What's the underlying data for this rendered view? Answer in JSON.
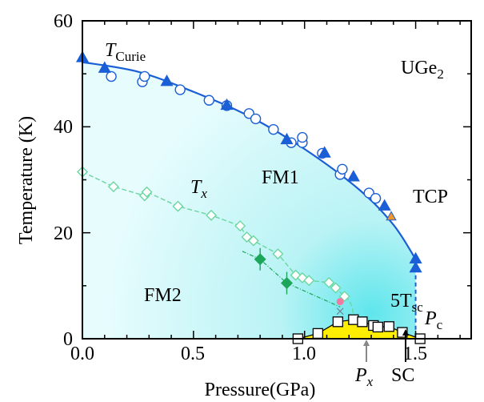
{
  "chart_data": {
    "type": "scatter",
    "title": "",
    "xlabel": "Pressure(GPa)",
    "ylabel": "Temperature (K)",
    "xlim": [
      0,
      1.75
    ],
    "ylim": [
      0,
      60
    ],
    "x_ticks": [
      "0.0",
      "0.5",
      "1.0",
      "1.5"
    ],
    "y_ticks": [
      "0",
      "20",
      "40",
      "60"
    ],
    "grid": false,
    "annotations": {
      "material": "UGe",
      "material_sub": "2",
      "curie": "T",
      "curie_sub": "Curie",
      "fm1": "FM1",
      "fm2": "FM2",
      "tx": "T",
      "tx_sub": "x",
      "tcp": "TCP",
      "sc_scale": "5T",
      "sc_scale_sub": "sc",
      "pc": "P",
      "pc_sub": "c",
      "px": "P",
      "px_sub": "x",
      "sc": "SC"
    },
    "colors": {
      "curie": "#1a5fd6",
      "tx": "#6bd6a0",
      "tx_filled": "#1ca65a",
      "tcp": "#f0962a",
      "pink": "#f07aa0",
      "sc_fill": "#ffee00",
      "region_fill": "#b9f3f5"
    },
    "series": [
      {
        "name": "T_Curie (filled triangles)",
        "marker": "triangle",
        "x": [
          0.0,
          0.1,
          0.38,
          0.65,
          0.92,
          1.09,
          1.22,
          1.36,
          1.5,
          1.5
        ],
        "y": [
          53,
          51,
          48.5,
          44,
          37.5,
          35,
          30.5,
          25,
          15,
          13.3
        ]
      },
      {
        "name": "T_Curie (open circles)",
        "marker": "circle-open",
        "x": [
          0.13,
          0.27,
          0.28,
          0.44,
          0.57,
          0.65,
          0.75,
          0.78,
          0.86,
          0.94,
          0.99,
          0.99,
          1.08,
          1.16,
          1.17,
          1.29,
          1.32
        ],
        "y": [
          49.5,
          48.5,
          49.5,
          47,
          45,
          44,
          42.5,
          41.5,
          39.5,
          37,
          37,
          38,
          35,
          31,
          32,
          27.5,
          26.5
        ]
      },
      {
        "name": "T_Curie fit",
        "marker": "line",
        "x": [
          0.0,
          0.25,
          0.5,
          0.75,
          1.0,
          1.25,
          1.4,
          1.5
        ],
        "y": [
          52.2,
          50.4,
          46.6,
          42,
          35.8,
          28,
          21.5,
          15
        ]
      },
      {
        "name": "T_x (open diamonds)",
        "marker": "diamond-open",
        "x": [
          0.0,
          0.14,
          0.28,
          0.29,
          0.43,
          0.58,
          0.71,
          0.74,
          0.77,
          0.88,
          0.96,
          0.99,
          1.02,
          1.11,
          1.14,
          1.18
        ],
        "y": [
          31.5,
          28.7,
          27,
          27.7,
          25,
          23.3,
          21.3,
          19.2,
          18.5,
          16,
          12,
          11.5,
          11,
          10.6,
          9.6,
          8
        ]
      },
      {
        "name": "T_x (filled diamonds)",
        "marker": "diamond",
        "x": [
          0.8,
          0.92
        ],
        "y": [
          15,
          10.5
        ]
      },
      {
        "name": "TCP",
        "marker": "triangle",
        "x": [
          1.39
        ],
        "y": [
          23
        ]
      },
      {
        "name": "pink point",
        "marker": "circle",
        "x": [
          1.16
        ],
        "y": [
          7
        ]
      },
      {
        "name": "5T_sc (open squares)",
        "marker": "square-open",
        "x": [
          0.97,
          1.06,
          1.15,
          1.22,
          1.26,
          1.31,
          1.33,
          1.38,
          1.44,
          1.52
        ],
        "y": [
          0,
          1,
          3.2,
          3.6,
          3.2,
          2.5,
          2.2,
          2.3,
          1.2,
          0
        ]
      }
    ]
  }
}
